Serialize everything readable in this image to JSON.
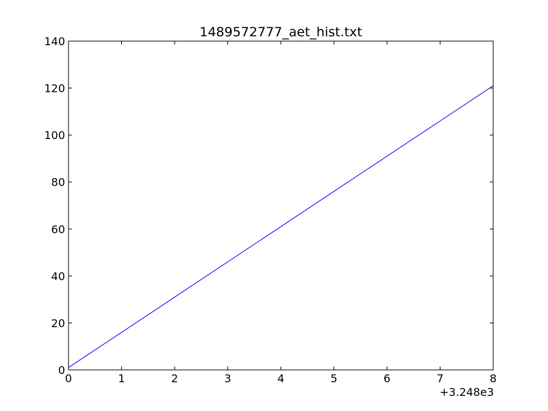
{
  "chart_data": {
    "type": "line",
    "title": "1489572777_aet_hist.txt",
    "xlabel": "",
    "ylabel": "",
    "x_offset_label": "+3.248e3",
    "xlim": [
      0,
      8
    ],
    "ylim": [
      0,
      140
    ],
    "x_ticks": [
      "0",
      "1",
      "2",
      "3",
      "4",
      "5",
      "6",
      "7",
      "8"
    ],
    "y_ticks": [
      "0",
      "20",
      "40",
      "60",
      "80",
      "100",
      "120",
      "140"
    ],
    "grid": false,
    "legend": "none",
    "series": [
      {
        "color": "#0000ff",
        "x": [
          0,
          8
        ],
        "y": [
          1,
          121
        ]
      }
    ]
  }
}
